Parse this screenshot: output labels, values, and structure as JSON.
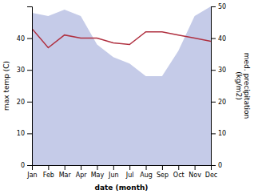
{
  "chart_data": {
    "type": "line",
    "xlabel": "date (month)",
    "ylabel": "max temp (C)",
    "y2label": "med. precipitation\n(kg/m2)",
    "categories": [
      "Jan",
      "Feb",
      "Mar",
      "Apr",
      "May",
      "Jun",
      "Jul",
      "Aug",
      "Sep",
      "Oct",
      "Nov",
      "Dec"
    ],
    "series": [
      {
        "type": "area",
        "axis": "y2",
        "color": "#c5cbe8",
        "values": [
          48,
          47,
          49,
          47,
          38,
          34,
          32,
          28,
          28,
          36,
          47,
          50
        ]
      },
      {
        "type": "line",
        "color": "#b03040",
        "values": [
          43,
          37,
          41,
          40,
          40,
          38.5,
          38,
          42,
          42,
          41,
          40,
          39
        ]
      }
    ],
    "ylim": [
      0,
      50
    ],
    "yticks": [
      0,
      10,
      20,
      30,
      40
    ],
    "y2lim": [
      0,
      50
    ],
    "y2ticks": [
      0,
      10,
      20,
      30,
      40,
      50
    ]
  }
}
